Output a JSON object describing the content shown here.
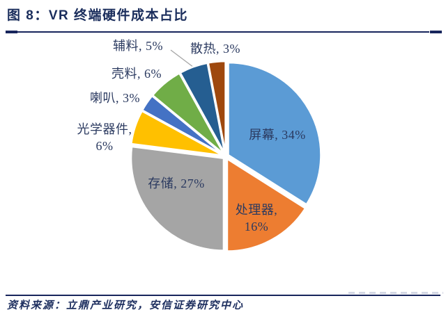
{
  "header": {
    "title": "图 8：VR 终端硬件成本占比"
  },
  "chart_data": {
    "type": "pie",
    "title": "VR 终端硬件成本占比",
    "value_unit": "%",
    "direction": "clockwise",
    "start_angle_deg": 0,
    "slices": [
      {
        "id": "screen",
        "label": "屏幕",
        "value": 34,
        "display": "屏幕, 34%",
        "color": "#5B9BD5"
      },
      {
        "id": "processor",
        "label": "处理器",
        "value": 16,
        "display": "处理器,\n16%",
        "color": "#ED7D31"
      },
      {
        "id": "storage",
        "label": "存储",
        "value": 27,
        "display": "存储, 27%",
        "color": "#A5A5A5"
      },
      {
        "id": "optics",
        "label": "光学器件",
        "value": 6,
        "display": "光学器件,\n6%",
        "color": "#FFC000"
      },
      {
        "id": "speaker",
        "label": "喇叭",
        "value": 3,
        "display": "喇叭, 3%",
        "color": "#4472C4"
      },
      {
        "id": "housing",
        "label": "壳料",
        "value": 6,
        "display": "壳料, 6%",
        "color": "#70AD47"
      },
      {
        "id": "auxiliary",
        "label": "辅料",
        "value": 5,
        "display": "辅料, 5%",
        "color": "#255E91"
      },
      {
        "id": "cooling",
        "label": "散热",
        "value": 3,
        "display": "散热, 3%",
        "color": "#9E480E"
      }
    ]
  },
  "footer": {
    "source": "资料来源：立鼎产业研究，安信证券研究中心"
  },
  "colors": {
    "title_text": "#1A2D5C",
    "label_text": "#2B3A60",
    "rule": "#17255C",
    "leader_line": "#A6A6A6",
    "background": "#FFFFFF"
  }
}
